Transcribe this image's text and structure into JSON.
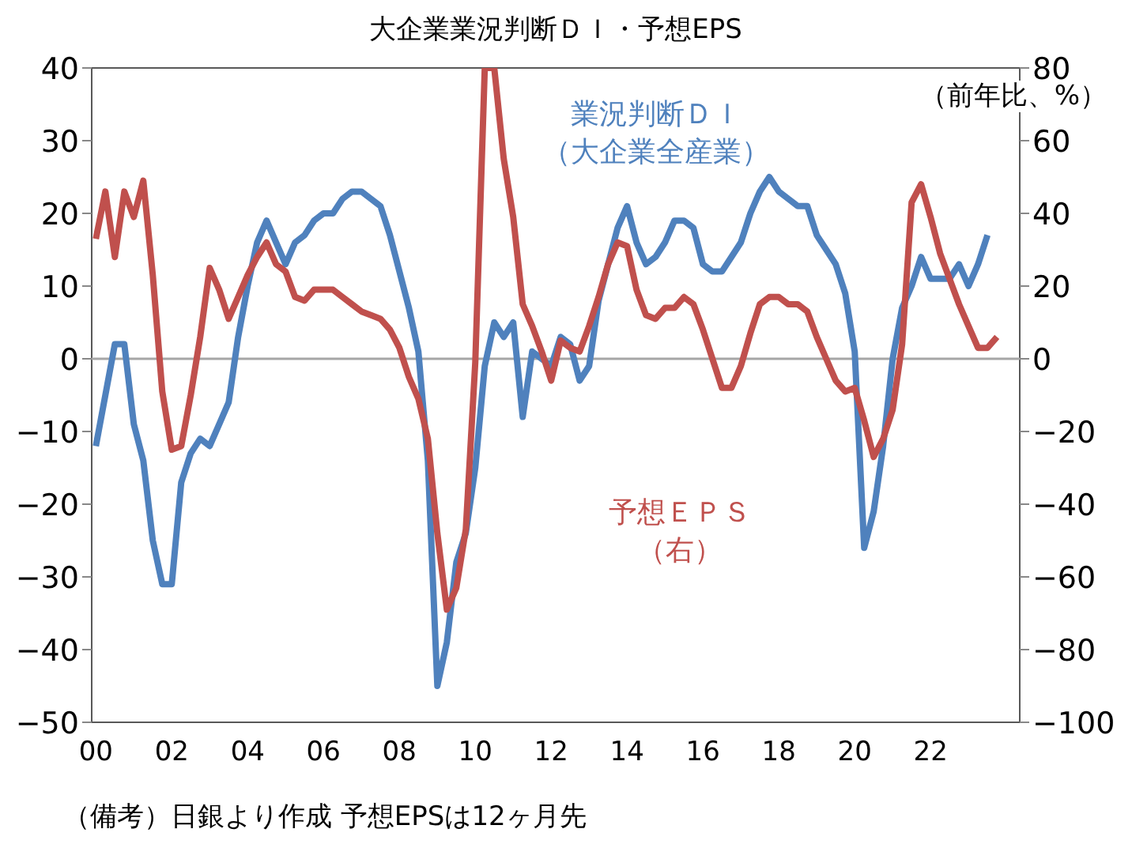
{
  "chart_data": {
    "type": "line",
    "title": "大企業業況判断ＤＩ・予想EPS",
    "y2label": "（前年比、%）",
    "annotations": [
      "（備考）日銀より作成 予想EPSは12ヶ月先"
    ],
    "x": [
      2000.0,
      2000.25,
      2000.5,
      2000.75,
      2001.0,
      2001.25,
      2001.5,
      2001.75,
      2002.0,
      2002.25,
      2002.5,
      2002.75,
      2003.0,
      2003.25,
      2003.5,
      2003.75,
      2004.0,
      2004.25,
      2004.5,
      2004.75,
      2005.0,
      2005.25,
      2005.5,
      2005.75,
      2006.0,
      2006.25,
      2006.5,
      2006.75,
      2007.0,
      2007.25,
      2007.5,
      2007.75,
      2008.0,
      2008.25,
      2008.5,
      2008.75,
      2009.0,
      2009.25,
      2009.5,
      2009.75,
      2010.0,
      2010.25,
      2010.5,
      2010.75,
      2011.0,
      2011.25,
      2011.5,
      2011.75,
      2012.0,
      2012.25,
      2012.5,
      2012.75,
      2013.0,
      2013.25,
      2013.5,
      2013.75,
      2014.0,
      2014.25,
      2014.5,
      2014.75,
      2015.0,
      2015.25,
      2015.5,
      2015.75,
      2016.0,
      2016.25,
      2016.5,
      2016.75,
      2017.0,
      2017.25,
      2017.5,
      2017.75,
      2018.0,
      2018.25,
      2018.5,
      2018.75,
      2019.0,
      2019.25,
      2019.5,
      2019.75,
      2020.0,
      2020.25,
      2020.5,
      2020.75,
      2021.0,
      2021.25,
      2021.5,
      2021.75,
      2022.0,
      2022.25,
      2022.5,
      2022.75,
      2023.0,
      2023.25,
      2023.5
    ],
    "xlim": [
      1999.89,
      2024.35
    ],
    "xticks": [
      {
        "value": 2000,
        "label": "00"
      },
      {
        "value": 2002,
        "label": "02"
      },
      {
        "value": 2004,
        "label": "04"
      },
      {
        "value": 2006,
        "label": "06"
      },
      {
        "value": 2008,
        "label": "08"
      },
      {
        "value": 2010,
        "label": "10"
      },
      {
        "value": 2012,
        "label": "12"
      },
      {
        "value": 2014,
        "label": "14"
      },
      {
        "value": 2016,
        "label": "16"
      },
      {
        "value": 2018,
        "label": "18"
      },
      {
        "value": 2020,
        "label": "20"
      },
      {
        "value": 2022,
        "label": "22"
      }
    ],
    "ylim": [
      -50,
      40
    ],
    "yticks": [
      -50,
      -40,
      -30,
      -20,
      -10,
      0,
      10,
      20,
      30,
      40
    ],
    "y2lim": [
      -100,
      80
    ],
    "y2ticks": [
      -100,
      -80,
      -60,
      -40,
      -20,
      0,
      20,
      40,
      60,
      80
    ],
    "ref_lines": [
      {
        "axis": "y",
        "value": 0,
        "color": "#a6a6a6"
      }
    ],
    "grid": false,
    "series": [
      {
        "name": "業況判断ＤＩ（大企業全産業）",
        "color": "#4f81bd",
        "values": [
          -12,
          -5,
          2,
          2,
          -9,
          -14,
          -25,
          -31,
          -31,
          -17,
          -13,
          -11,
          -12,
          -9,
          -6,
          3,
          10,
          16,
          19,
          16,
          13,
          16,
          17,
          19,
          20,
          20,
          22,
          23,
          23,
          22,
          21,
          17,
          12,
          7,
          1,
          -14,
          -45,
          -39,
          -28,
          -24,
          -15,
          -1,
          5,
          3,
          5,
          -8,
          1,
          0,
          -1,
          3,
          2,
          -3,
          -1,
          8,
          13,
          18,
          21,
          16,
          13,
          14,
          16,
          19,
          19,
          18,
          13,
          12,
          12,
          14,
          16,
          20,
          23,
          25,
          23,
          22,
          21,
          21,
          17,
          15,
          13,
          9,
          1,
          -26,
          -21,
          -12,
          0,
          7,
          10,
          14,
          11,
          11,
          11,
          13,
          10,
          13,
          17
        ]
      },
      {
        "name": "予想ＥＰＳ（右）",
        "color": "#c0504d",
        "axis": "y2",
        "x": [
          2000.0,
          2000.25,
          2000.5,
          2000.75,
          2001.0,
          2001.25,
          2001.5,
          2001.75,
          2002.0,
          2002.25,
          2002.5,
          2002.75,
          2003.0,
          2003.25,
          2003.5,
          2003.75,
          2004.0,
          2004.25,
          2004.5,
          2004.75,
          2005.0,
          2005.25,
          2005.5,
          2005.75,
          2006.0,
          2006.25,
          2006.5,
          2006.75,
          2007.0,
          2007.25,
          2007.5,
          2007.75,
          2008.0,
          2008.25,
          2008.5,
          2008.75,
          2009.0,
          2009.25,
          2009.5,
          2009.75,
          2010.0,
          2010.25,
          2010.5,
          2010.75,
          2011.0,
          2011.25,
          2011.5,
          2011.75,
          2012.0,
          2012.25,
          2012.5,
          2012.75,
          2013.0,
          2013.25,
          2013.5,
          2013.75,
          2014.0,
          2014.25,
          2014.5,
          2014.75,
          2015.0,
          2015.25,
          2015.5,
          2015.75,
          2016.0,
          2016.25,
          2016.5,
          2016.75,
          2017.0,
          2017.25,
          2017.5,
          2017.75,
          2018.0,
          2018.25,
          2018.5,
          2018.75,
          2019.0,
          2019.25,
          2019.5,
          2019.75,
          2020.0,
          2020.25,
          2020.5,
          2020.75,
          2021.0,
          2021.25,
          2021.5,
          2021.75,
          2022.0,
          2022.25,
          2022.5,
          2022.75,
          2023.0,
          2023.25,
          2023.5,
          2023.75
        ],
        "values": [
          33,
          46,
          28,
          46,
          39,
          49,
          23,
          -9,
          -25,
          -24,
          -10,
          6,
          25,
          19,
          11,
          17,
          23,
          28,
          32,
          26,
          24,
          17,
          16,
          19,
          19,
          19,
          17,
          15,
          13,
          12,
          11,
          8,
          3,
          -5,
          -11,
          -22,
          -48,
          -69,
          -63,
          -47,
          -1,
          80,
          80,
          55,
          39,
          15,
          9,
          2,
          -6,
          5,
          3,
          2,
          9,
          17,
          26,
          32,
          31,
          19,
          12,
          11,
          14,
          14,
          17,
          15,
          8,
          0,
          -8,
          -8,
          -2,
          7,
          15,
          17,
          17,
          15,
          15,
          13,
          6,
          0,
          -6,
          -9,
          -8,
          -17,
          -27,
          -22,
          -14,
          4,
          43,
          48,
          39,
          29,
          22,
          15,
          9,
          3,
          3,
          6
        ]
      }
    ]
  }
}
